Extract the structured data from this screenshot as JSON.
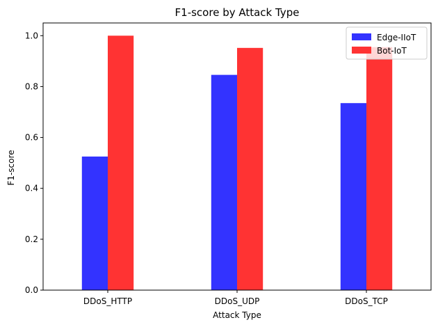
{
  "chart_data": {
    "type": "bar",
    "title": "F1-score by Attack Type",
    "xlabel": "Attack Type",
    "ylabel": "F1-score",
    "categories": [
      "DDoS_HTTP",
      "DDoS_UDP",
      "DDoS_TCP"
    ],
    "series": [
      {
        "name": "Edge-IIoT",
        "values": [
          0.525,
          0.846,
          0.735
        ],
        "color": "#3333ff"
      },
      {
        "name": "Bot-IoT",
        "values": [
          1.0,
          0.952,
          0.955
        ],
        "color": "#ff3333"
      }
    ],
    "ylim": [
      0,
      1.05
    ],
    "yticks": [
      0.0,
      0.2,
      0.4,
      0.6,
      0.8,
      1.0
    ],
    "ytick_labels": [
      "0.0",
      "0.2",
      "0.4",
      "0.6",
      "0.8",
      "1.0"
    ],
    "grid": false,
    "legend_position": "top-right"
  }
}
